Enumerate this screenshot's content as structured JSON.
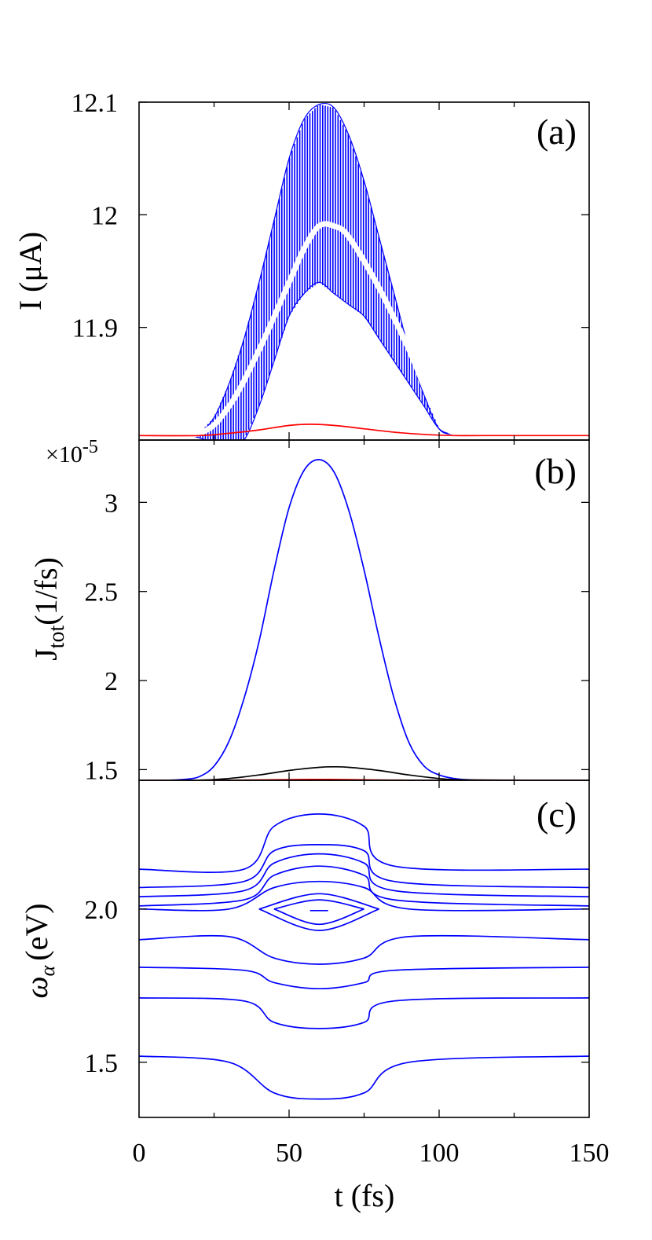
{
  "figure": {
    "x_axis": {
      "label": "t (fs)",
      "range": [
        0,
        150
      ],
      "ticks": [
        0,
        50,
        100,
        150
      ],
      "tick_labels": [
        "0",
        "50",
        "100",
        "150"
      ]
    }
  },
  "chart_data": [
    {
      "type": "line",
      "panel": "(a)",
      "ylabel": "I (μA)",
      "ylim": [
        11.8,
        12.1
      ],
      "yticks": [
        "11.9",
        "12",
        "12.1"
      ],
      "grid": false,
      "series": [
        {
          "color": "#0000ff",
          "envelope": {
            "x": [
              0,
              15,
              20,
              25,
              30,
              35,
              40,
              45,
              50,
              55,
              60,
              65,
              70,
              75,
              80,
              85,
              90,
              95,
              100,
              105,
              110,
              115,
              120,
              150
            ],
            "upper": [
              11.804,
              11.804,
              11.806,
              11.82,
              11.85,
              11.89,
              11.94,
              11.995,
              12.05,
              12.085,
              12.098,
              12.095,
              12.07,
              12.03,
              11.98,
              11.93,
              11.88,
              11.84,
              11.81,
              11.805,
              11.804,
              11.804,
              11.804,
              11.804
            ],
            "lower": [
              11.804,
              11.804,
              11.802,
              11.797,
              11.795,
              11.8,
              11.83,
              11.87,
              11.91,
              11.93,
              11.94,
              11.93,
              11.92,
              11.91,
              11.89,
              11.87,
              11.85,
              11.83,
              11.81,
              11.805,
              11.804,
              11.804,
              11.804,
              11.804
            ]
          },
          "mean": {
            "x": [
              0,
              20,
              30,
              40,
              50,
              55,
              60,
              65,
              70,
              80,
              90,
              100,
              110,
              150
            ],
            "y": [
              11.804,
              11.806,
              11.83,
              11.88,
              11.94,
              11.97,
              11.99,
              11.99,
              11.98,
              11.935,
              11.88,
              11.82,
              11.805,
              11.804
            ]
          }
        },
        {
          "color": "#ff0000",
          "x": [
            0,
            20,
            30,
            40,
            50,
            57,
            65,
            75,
            85,
            95,
            105,
            115,
            150
          ],
          "y": [
            11.804,
            11.804,
            11.806,
            11.809,
            11.813,
            11.814,
            11.813,
            11.81,
            11.807,
            11.805,
            11.804,
            11.804,
            11.804
          ]
        }
      ]
    },
    {
      "type": "line",
      "panel": "(b)",
      "ylabel": "J",
      "ylabel_subscript": "tot",
      "ylabel_unit": "(1/fs)",
      "multiplier_base": "×10",
      "multiplier_exp": "-5",
      "ylim": [
        1.44,
        3.35
      ],
      "yticks": [
        "1.5",
        "2",
        "2.5",
        "3"
      ],
      "grid": false,
      "series": [
        {
          "color": "#0000ff",
          "x": [
            0,
            10,
            15,
            20,
            25,
            30,
            35,
            40,
            45,
            50,
            55,
            60,
            65,
            70,
            75,
            80,
            85,
            90,
            95,
            100,
            105,
            110,
            115,
            120,
            150
          ],
          "y": [
            1.44,
            1.441,
            1.445,
            1.46,
            1.52,
            1.66,
            1.9,
            2.22,
            2.62,
            2.97,
            3.18,
            3.24,
            3.17,
            2.95,
            2.62,
            2.24,
            1.9,
            1.65,
            1.52,
            1.47,
            1.45,
            1.443,
            1.44,
            1.44,
            1.44
          ]
        },
        {
          "color": "#000000",
          "x": [
            0,
            20,
            30,
            40,
            50,
            60,
            65,
            70,
            80,
            90,
            100,
            110,
            150
          ],
          "y": [
            1.44,
            1.441,
            1.45,
            1.47,
            1.495,
            1.513,
            1.516,
            1.513,
            1.495,
            1.47,
            1.45,
            1.442,
            1.44
          ]
        },
        {
          "color": "#ff0000",
          "x": [
            0,
            30,
            50,
            60,
            70,
            90,
            150
          ],
          "y": [
            1.44,
            1.441,
            1.444,
            1.445,
            1.444,
            1.441,
            1.44
          ]
        }
      ]
    },
    {
      "type": "line",
      "panel": "(c)",
      "ylabel": "ω",
      "ylabel_subscript": "α",
      "ylabel_unit": "(eV)",
      "ylim": [
        1.32,
        2.42
      ],
      "yticks": [
        "1.5",
        "2.0"
      ],
      "grid": false,
      "series": [
        {
          "color": "#0000ff",
          "x": [
            0,
            35,
            45,
            60,
            75,
            85,
            150
          ],
          "y": [
            2.13,
            2.13,
            2.27,
            2.31,
            2.27,
            2.14,
            2.13
          ]
        },
        {
          "color": "#0000ff",
          "x": [
            0,
            35,
            45,
            60,
            75,
            85,
            150
          ],
          "y": [
            2.07,
            2.09,
            2.19,
            2.21,
            2.19,
            2.09,
            2.07
          ]
        },
        {
          "color": "#0000ff",
          "x": [
            0,
            35,
            45,
            60,
            75,
            85,
            150
          ],
          "y": [
            2.04,
            2.06,
            2.15,
            2.18,
            2.15,
            2.06,
            2.04
          ]
        },
        {
          "color": "#0000ff",
          "x": [
            0,
            35,
            45,
            60,
            75,
            85,
            150
          ],
          "y": [
            2.01,
            2.03,
            2.11,
            2.14,
            2.11,
            2.03,
            2.01
          ]
        },
        {
          "color": "#0000ff",
          "x": [
            0,
            30,
            45,
            60,
            75,
            90,
            150
          ],
          "y": [
            2.0,
            2.0,
            2.07,
            2.09,
            2.07,
            2.0,
            2.0
          ]
        },
        {
          "color": "#0000ff",
          "x": [
            0,
            30,
            45,
            60,
            75,
            90,
            150
          ],
          "y": [
            1.9,
            1.91,
            1.84,
            1.82,
            1.84,
            1.91,
            1.9
          ]
        },
        {
          "color": "#0000ff",
          "x": [
            0,
            35,
            45,
            60,
            75,
            85,
            150
          ],
          "y": [
            1.81,
            1.8,
            1.76,
            1.74,
            1.76,
            1.8,
            1.81
          ]
        },
        {
          "color": "#0000ff",
          "x": [
            0,
            35,
            45,
            60,
            75,
            85,
            150
          ],
          "y": [
            1.71,
            1.7,
            1.63,
            1.61,
            1.63,
            1.7,
            1.71
          ]
        },
        {
          "color": "#0000ff",
          "x": [
            0,
            30,
            45,
            60,
            75,
            90,
            150
          ],
          "y": [
            1.52,
            1.5,
            1.4,
            1.38,
            1.4,
            1.5,
            1.52
          ]
        },
        {
          "color": "#0000ff",
          "x": [
            40,
            60,
            80
          ],
          "y": [
            2.0,
            2.05,
            2.0
          ]
        },
        {
          "color": "#0000ff",
          "x": [
            40,
            60,
            80
          ],
          "y": [
            2.0,
            1.93,
            2.0
          ]
        },
        {
          "color": "#0000ff",
          "x": [
            45,
            60,
            75
          ],
          "y": [
            2.0,
            2.03,
            2.0
          ]
        },
        {
          "color": "#0000ff",
          "x": [
            45,
            60,
            75
          ],
          "y": [
            2.0,
            1.95,
            2.0
          ]
        },
        {
          "color": "#0000ff",
          "x": [
            57,
            60,
            63
          ],
          "y": [
            1.995,
            1.995,
            1.995
          ]
        }
      ]
    }
  ]
}
